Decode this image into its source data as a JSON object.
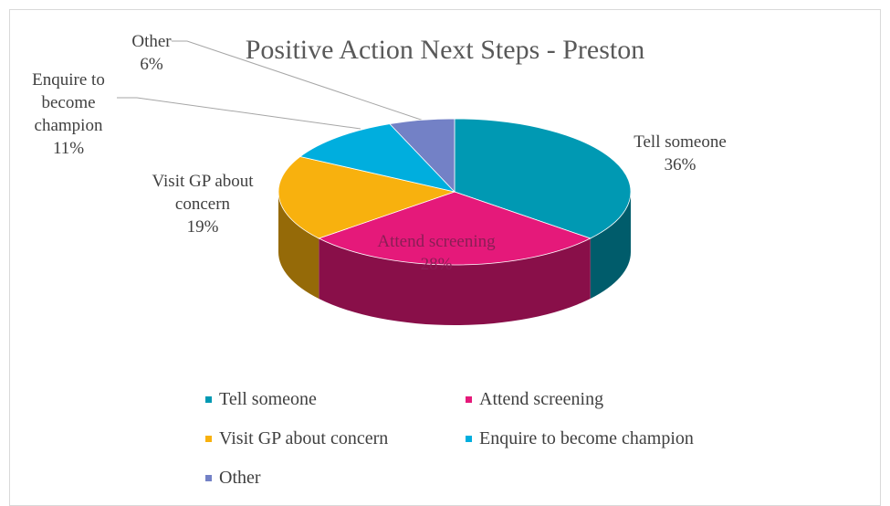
{
  "chart_data": {
    "type": "pie",
    "title": "Positive Action Next Steps - Preston",
    "categories": [
      "Tell someone",
      "Attend screening",
      "Visit GP about concern",
      "Enquire to become champion",
      "Other"
    ],
    "values": [
      36,
      28,
      19,
      11,
      6
    ],
    "value_labels": [
      "36%",
      "28%",
      "19%",
      "11%",
      "6%"
    ],
    "colors": [
      "#0099b3",
      "#e5197a",
      "#f8b10e",
      "#00aede",
      "#7381c6"
    ],
    "legend": "bottom"
  }
}
